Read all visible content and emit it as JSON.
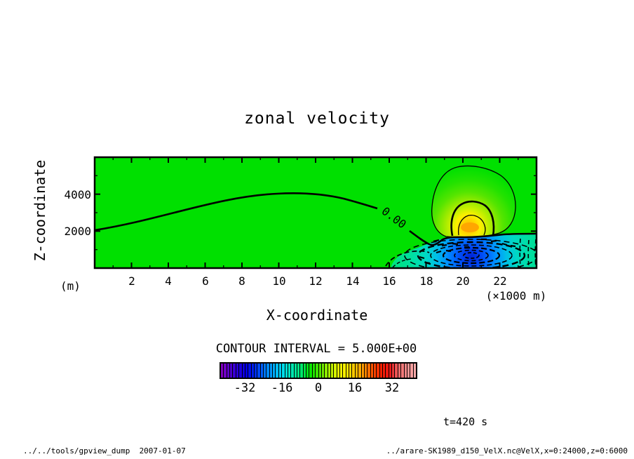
{
  "plot": {
    "title": "zonal velocity"
  },
  "axes": {
    "x": {
      "label": "X-coordinate",
      "unit": "(×1000 m)",
      "ticks": [
        "2",
        "4",
        "6",
        "8",
        "10",
        "12",
        "14",
        "16",
        "18",
        "20",
        "22"
      ]
    },
    "y": {
      "label": "Z-coordinate",
      "unit": "(m)",
      "ticks": {
        "t4000": "4000",
        "t2000": "2000"
      }
    }
  },
  "contour": {
    "interval_label": "CONTOUR INTERVAL = 5.000E+00",
    "zero_label": "0.00"
  },
  "colorbar": {
    "labels": [
      "-32",
      "-16",
      "0",
      "16",
      "32"
    ],
    "cell_count": 64,
    "stops": [
      "#8800BB",
      "#5500CC",
      "#2200DD",
      "#0000E8",
      "#0033FF",
      "#0077FF",
      "#00AAFF",
      "#00DDEE",
      "#00E6B4",
      "#00E878",
      "#00E400",
      "#44E300",
      "#99EC00",
      "#DDF400",
      "#FFF000",
      "#FFC800",
      "#FF9900",
      "#FF5500",
      "#FF2200",
      "#E81414",
      "#F06666",
      "#F79090",
      "#FBAFAF"
    ]
  },
  "annotations": {
    "time": "t=420 s"
  },
  "footer": {
    "left": "../../tools/gpview_dump  2007-01-07",
    "right": "../arare-SK1989_d150_VelX.nc@VelX,x=0:24000,z=0:6000"
  },
  "colors": {
    "background_field": "#00E000",
    "positive_core": "#FFA800",
    "negative_core": "#0024D4"
  },
  "chart_data": {
    "type": "heatmap",
    "subtype": "filled-contour-cross-section",
    "title": "zonal velocity",
    "xlabel": "X-coordinate",
    "x_unit": "×1000 m",
    "ylabel": "Z-coordinate",
    "y_unit": "m",
    "xlim": [
      0,
      24000
    ],
    "ylim": [
      0,
      6000
    ],
    "x_tick_values": [
      2000,
      4000,
      6000,
      8000,
      10000,
      12000,
      14000,
      16000,
      18000,
      20000,
      22000
    ],
    "y_tick_values": [
      2000,
      4000
    ],
    "contour_interval": 5.0,
    "colorbar_tick_values": [
      -32,
      -16,
      0,
      16,
      32
    ],
    "colorbar_range": [
      -42.5,
      42.5
    ],
    "time_s": 420,
    "grid": false,
    "legend_position": "bottom-colorbar",
    "zero_contour_points": [
      [
        0,
        2050
      ],
      [
        2000,
        2450
      ],
      [
        4000,
        3000
      ],
      [
        6000,
        3450
      ],
      [
        8000,
        3850
      ],
      [
        10000,
        4050
      ],
      [
        11000,
        4100
      ],
      [
        12000,
        4050
      ],
      [
        13000,
        3900
      ],
      [
        14000,
        3650
      ],
      [
        15000,
        3300
      ],
      [
        16000,
        2900
      ],
      [
        17000,
        2200
      ],
      [
        18000,
        1350
      ],
      [
        18800,
        1600
      ],
      [
        20000,
        1700
      ],
      [
        21000,
        1750
      ],
      [
        22000,
        1800
      ],
      [
        23000,
        1850
      ],
      [
        24000,
        1870
      ]
    ],
    "features": [
      {
        "name": "positive-anomaly",
        "center_x_m": 20400,
        "center_z_m": 2300,
        "peak_value": 22,
        "solid_contours": [
          5,
          10,
          15,
          20
        ]
      },
      {
        "name": "negative-anomaly",
        "center_x_m": 20500,
        "center_z_m": 700,
        "min_value": -31,
        "dashed_contours": [
          -5,
          -10,
          -15,
          -20,
          -25,
          -30
        ]
      },
      {
        "name": "secondary-negative-blob",
        "center_x_m": 17100,
        "center_z_m": 450,
        "min_value": -8
      }
    ],
    "background_value_range": [
      0,
      5
    ]
  }
}
